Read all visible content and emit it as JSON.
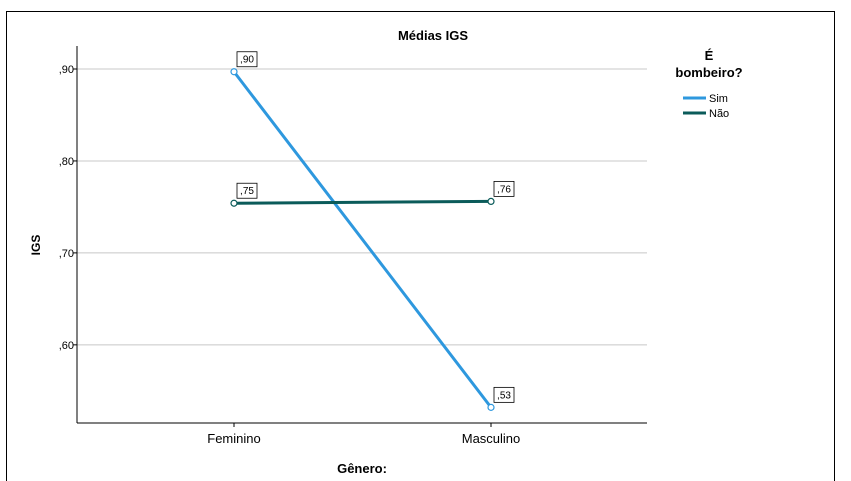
{
  "chart_data": {
    "type": "line",
    "title": "Médias IGS",
    "xlabel": "Gênero:",
    "ylabel": "IGS",
    "categories": [
      "Feminino",
      "Masculino"
    ],
    "ylim": [
      0.515,
      0.925
    ],
    "yticks": [
      0.6,
      0.7,
      0.8,
      0.9
    ],
    "ytick_labels": [
      ",60",
      ",70",
      ",80",
      ",90"
    ],
    "grid": true,
    "legend": {
      "title": "É bombeiro?",
      "title_lines": [
        "É",
        "bombeiro?"
      ],
      "position": "top-right"
    },
    "series": [
      {
        "name": "Sim",
        "color": "#2e98de",
        "values": [
          0.897,
          0.532
        ],
        "labels": [
          ",90",
          ",53"
        ]
      },
      {
        "name": "Não",
        "color": "#0b5b5a",
        "values": [
          0.754,
          0.756
        ],
        "labels": [
          ",75",
          ",76"
        ]
      }
    ]
  }
}
